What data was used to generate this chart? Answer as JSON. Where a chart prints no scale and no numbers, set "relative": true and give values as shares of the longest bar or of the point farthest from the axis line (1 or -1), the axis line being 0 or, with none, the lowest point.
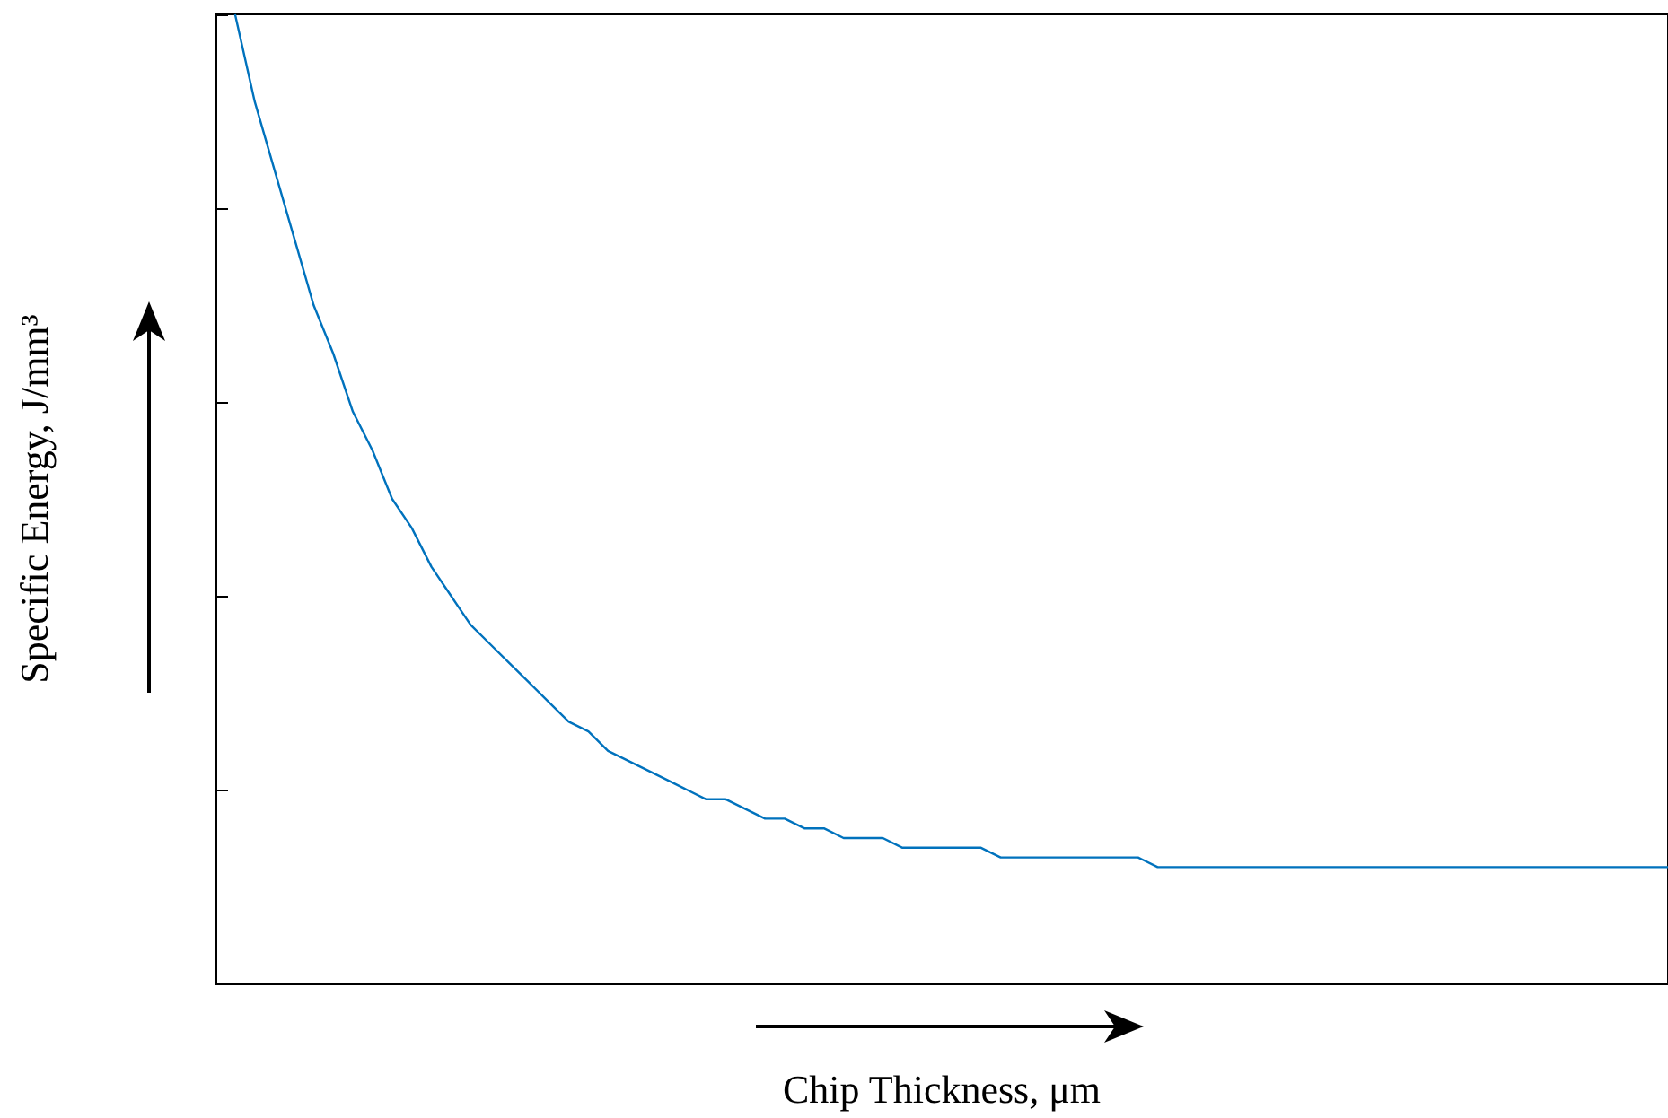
{
  "chart_data": {
    "type": "line",
    "relative": true,
    "xlabel": "Chip Thickness, μm",
    "ylabel": "Specific Energy, J/mm³",
    "marker": "none",
    "categories": [
      null,
      null,
      null,
      null,
      null,
      null,
      null,
      null,
      null,
      null,
      null,
      null,
      null,
      null,
      null,
      null,
      null,
      null,
      null,
      null,
      null,
      null,
      null,
      null,
      null,
      null,
      null,
      null,
      null,
      null,
      null,
      null,
      null,
      null,
      null,
      null,
      null,
      null,
      null,
      null,
      null,
      null,
      null,
      null,
      null,
      null,
      null,
      null,
      null,
      null,
      null,
      null,
      null,
      null,
      null,
      null,
      null,
      null,
      null,
      null,
      null,
      null,
      null,
      null,
      null,
      null,
      null,
      null,
      null,
      null,
      null,
      null,
      null,
      null,
      null
    ],
    "series": [
      {
        "color": "#0072bd",
        "values": [
          null,
          1.0,
          0.91,
          0.84,
          0.77,
          0.7,
          0.65,
          0.59,
          0.55,
          0.5,
          0.47,
          0.43,
          0.4,
          0.37,
          0.35,
          0.33,
          0.31,
          0.29,
          0.27,
          0.26,
          0.24,
          0.23,
          0.22,
          0.21,
          0.2,
          0.19,
          0.19,
          0.18,
          0.17,
          0.17,
          0.16,
          0.16,
          0.15,
          0.15,
          0.15,
          0.14,
          0.14,
          0.14,
          0.14,
          0.14,
          0.13,
          0.13,
          0.13,
          0.13,
          0.13,
          0.13,
          0.13,
          0.13,
          0.12,
          0.12,
          0.12,
          0.12,
          0.12,
          0.12,
          0.12,
          0.12,
          0.12,
          0.12,
          0.12,
          0.12,
          0.12,
          0.12,
          0.12,
          0.12,
          0.12,
          0.12,
          0.12,
          0.12,
          0.12,
          0.12,
          0.12,
          0.12,
          0.12,
          0.12,
          0.12
        ]
      }
    ]
  }
}
